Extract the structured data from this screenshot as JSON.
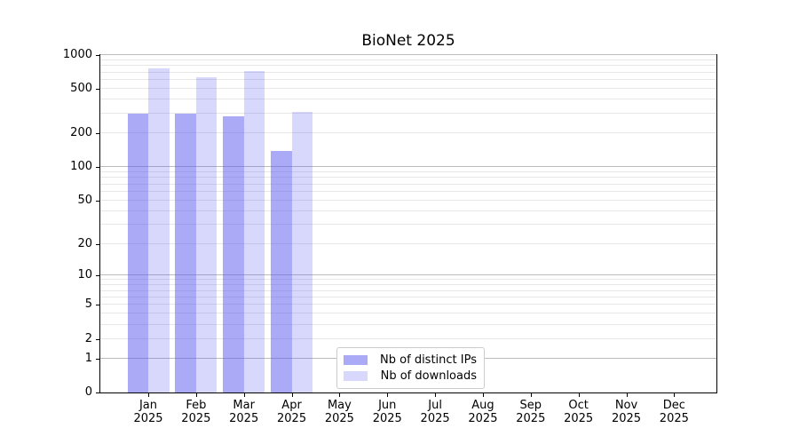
{
  "chart_data": {
    "type": "bar",
    "title": "BioNet 2025",
    "xlabel": "",
    "ylabel": "",
    "year": "2025",
    "categories": [
      "Jan",
      "Feb",
      "Mar",
      "Apr",
      "May",
      "Jun",
      "Jul",
      "Aug",
      "Sep",
      "Oct",
      "Nov",
      "Dec"
    ],
    "series": [
      {
        "name": "Nb of distinct IPs",
        "color": "rgba(85,85,240,0.50)",
        "values": [
          300,
          300,
          285,
          140,
          null,
          null,
          null,
          null,
          null,
          null,
          null,
          null
        ]
      },
      {
        "name": "Nb of downloads",
        "color": "rgba(85,85,240,0.23)",
        "values": [
          760,
          630,
          725,
          310,
          null,
          null,
          null,
          null,
          null,
          null,
          null,
          null
        ]
      }
    ],
    "yticks": [
      1000,
      500,
      200,
      100,
      50,
      20,
      10,
      5,
      2,
      1,
      0
    ],
    "ylim": [
      0,
      1000
    ],
    "yscale": "log10(value+1)",
    "grid": {
      "minor_values": [
        2,
        3,
        4,
        5,
        6,
        7,
        8,
        9,
        20,
        30,
        40,
        50,
        60,
        70,
        80,
        90,
        200,
        300,
        400,
        500,
        600,
        700,
        800,
        900
      ],
      "major_values": [
        1,
        10,
        100,
        1000
      ],
      "minor_color": "#e7e7e7",
      "major_color": "#bcbcbc"
    },
    "legend": {
      "position": "inside-bottom-center"
    },
    "axis_color": "#000000",
    "background_color": "#ffffff"
  }
}
